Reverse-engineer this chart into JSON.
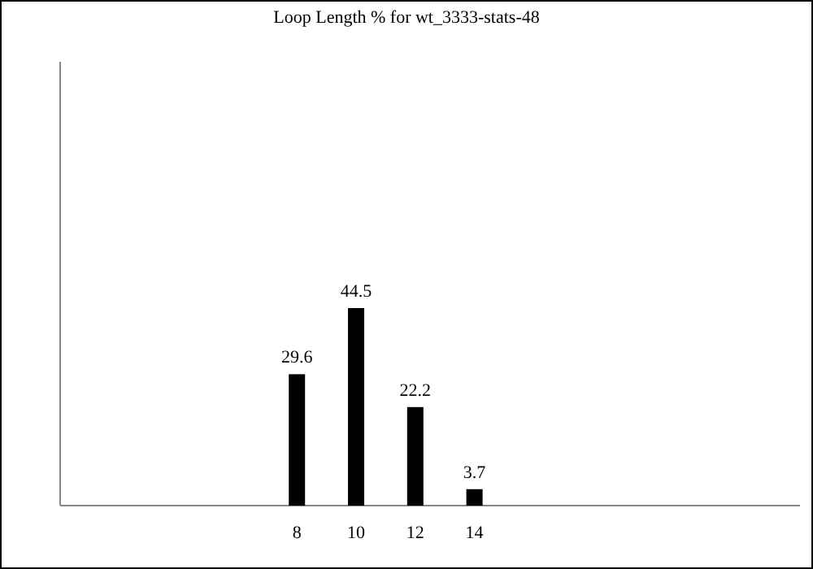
{
  "chart_data": {
    "type": "bar",
    "title": "Loop Length % for wt_3333-stats-48",
    "x": [
      8,
      10,
      12,
      14
    ],
    "values": [
      29.6,
      44.5,
      22.2,
      3.7
    ],
    "color": "#000000",
    "xlim": [
      0,
      25
    ],
    "xticks": [
      8,
      10,
      12,
      14
    ],
    "ylim": [
      0,
      100
    ],
    "tick_labels": "x",
    "data_labels": true
  }
}
